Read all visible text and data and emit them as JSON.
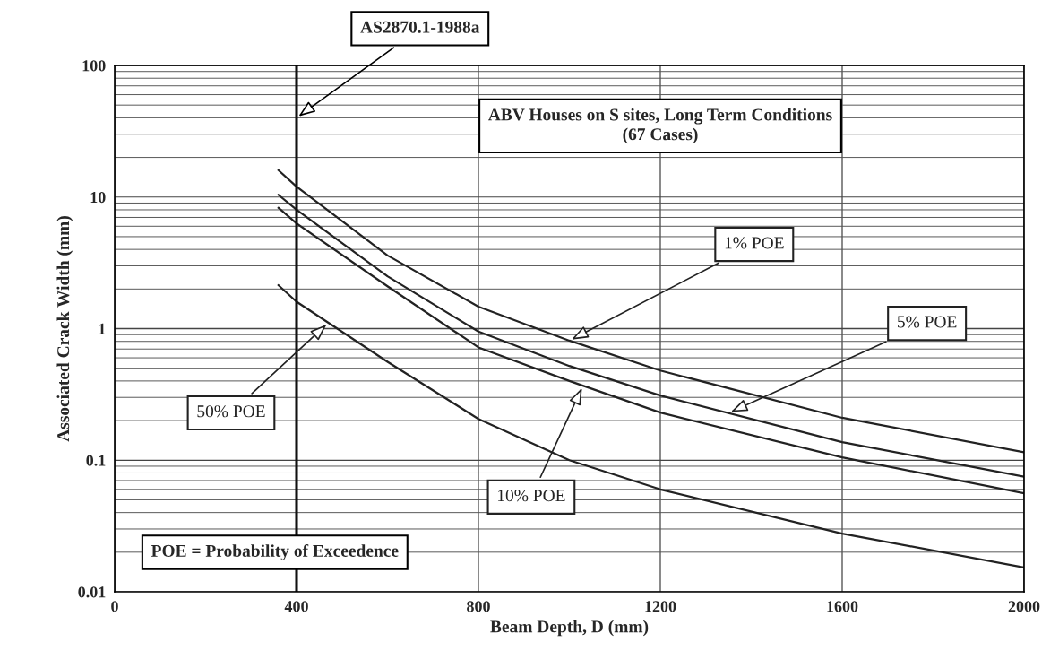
{
  "chart_data": {
    "type": "line",
    "title": "ABV Houses on S sites, Long Term Conditions\n(67 Cases)",
    "xlabel": "Beam Depth, D (mm)",
    "ylabel": "Associated Crack Width (mm)",
    "x": [
      360,
      400,
      600,
      800,
      1000,
      1200,
      1600,
      2000
    ],
    "series": [
      {
        "name": "1% POE",
        "color": "#222222",
        "values": [
          16,
          12,
          3.6,
          1.47,
          0.81,
          0.48,
          0.21,
          0.115
        ]
      },
      {
        "name": "5% POE",
        "color": "#222222",
        "values": [
          10.4,
          8,
          2.5,
          0.95,
          0.52,
          0.31,
          0.137,
          0.075
        ]
      },
      {
        "name": "10% POE",
        "color": "#222222",
        "values": [
          8.3,
          6.3,
          2.1,
          0.72,
          0.4,
          0.23,
          0.105,
          0.056
        ]
      },
      {
        "name": "50% POE",
        "color": "#222222",
        "values": [
          2.14,
          1.6,
          0.56,
          0.206,
          0.1,
          0.06,
          0.0277,
          0.0153
        ]
      }
    ],
    "ref_lines": [
      {
        "axis": "x",
        "value": 400,
        "label": "AS2870.1-1988a",
        "color": "#111111"
      }
    ],
    "annotations": [
      "POE = Probability of Exceedence"
    ],
    "log": "y",
    "xlim": [
      0,
      2000
    ],
    "ylim": [
      0.01,
      100
    ],
    "xticks": [
      0,
      400,
      800,
      1200,
      1600,
      2000
    ],
    "yticks": [
      0.01,
      0.1,
      1,
      10,
      100
    ],
    "grid": true,
    "legend": false,
    "marker": "none",
    "line_style": "solid"
  }
}
